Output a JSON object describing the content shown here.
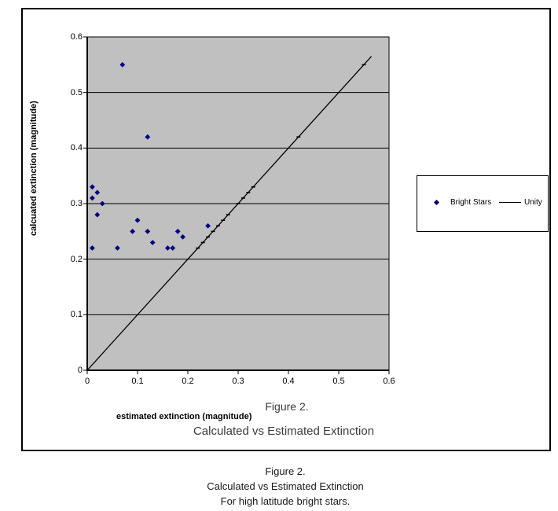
{
  "figure": {
    "inner_title_line1": "Figure 2.",
    "inner_title_line2": "Calculated vs Estimated Extinction"
  },
  "caption": {
    "line1": "Figure 2.",
    "line2": "Calculated vs Estimated Extinction",
    "line3": "For high latitude bright stars."
  },
  "legend": {
    "entries": [
      {
        "label": "Bright Stars",
        "marker": "diamond",
        "color": "#000080"
      },
      {
        "label": "Unity",
        "marker": "line",
        "color": "#000000"
      }
    ],
    "position": "right"
  },
  "chart_data": {
    "type": "scatter",
    "title": "Calculated vs Estimated Extinction",
    "subtitle": "Figure 2.",
    "xlabel": "estimated extinction (magnitude)",
    "ylabel": "calcuated extinction (magnitude)",
    "xlim": [
      0,
      0.6
    ],
    "ylim": [
      0,
      0.6
    ],
    "x_ticks": [
      "0",
      "0.1",
      "0.2",
      "0.3",
      "0.4",
      "0.5",
      "0.6"
    ],
    "y_ticks": [
      "0",
      "0.1",
      "0.2",
      "0.3",
      "0.4",
      "0.5",
      "0.6"
    ],
    "grid": "horizontal",
    "colors": {
      "plot_bg": "#c0c0c0",
      "axis": "#000000",
      "point": "#000080",
      "line": "#000000"
    },
    "series": [
      {
        "name": "Bright Stars",
        "type": "scatter",
        "marker": "diamond",
        "color": "#000080",
        "points": [
          [
            0.07,
            0.55
          ],
          [
            0.12,
            0.42
          ],
          [
            0.01,
            0.33
          ],
          [
            0.02,
            0.32
          ],
          [
            0.01,
            0.31
          ],
          [
            0.03,
            0.3
          ],
          [
            0.02,
            0.28
          ],
          [
            0.01,
            0.22
          ],
          [
            0.06,
            0.22
          ],
          [
            0.09,
            0.25
          ],
          [
            0.1,
            0.27
          ],
          [
            0.12,
            0.25
          ],
          [
            0.13,
            0.23
          ],
          [
            0.16,
            0.22
          ],
          [
            0.17,
            0.22
          ],
          [
            0.18,
            0.25
          ],
          [
            0.19,
            0.24
          ],
          [
            0.24,
            0.26
          ]
        ]
      },
      {
        "name": "Unity",
        "type": "line",
        "color": "#000000",
        "x": [
          0,
          0.565
        ],
        "y": [
          0,
          0.565
        ],
        "markers": [
          0.22,
          0.23,
          0.24,
          0.25,
          0.26,
          0.27,
          0.28,
          0.3,
          0.31,
          0.32,
          0.33,
          0.42,
          0.55
        ]
      }
    ]
  }
}
